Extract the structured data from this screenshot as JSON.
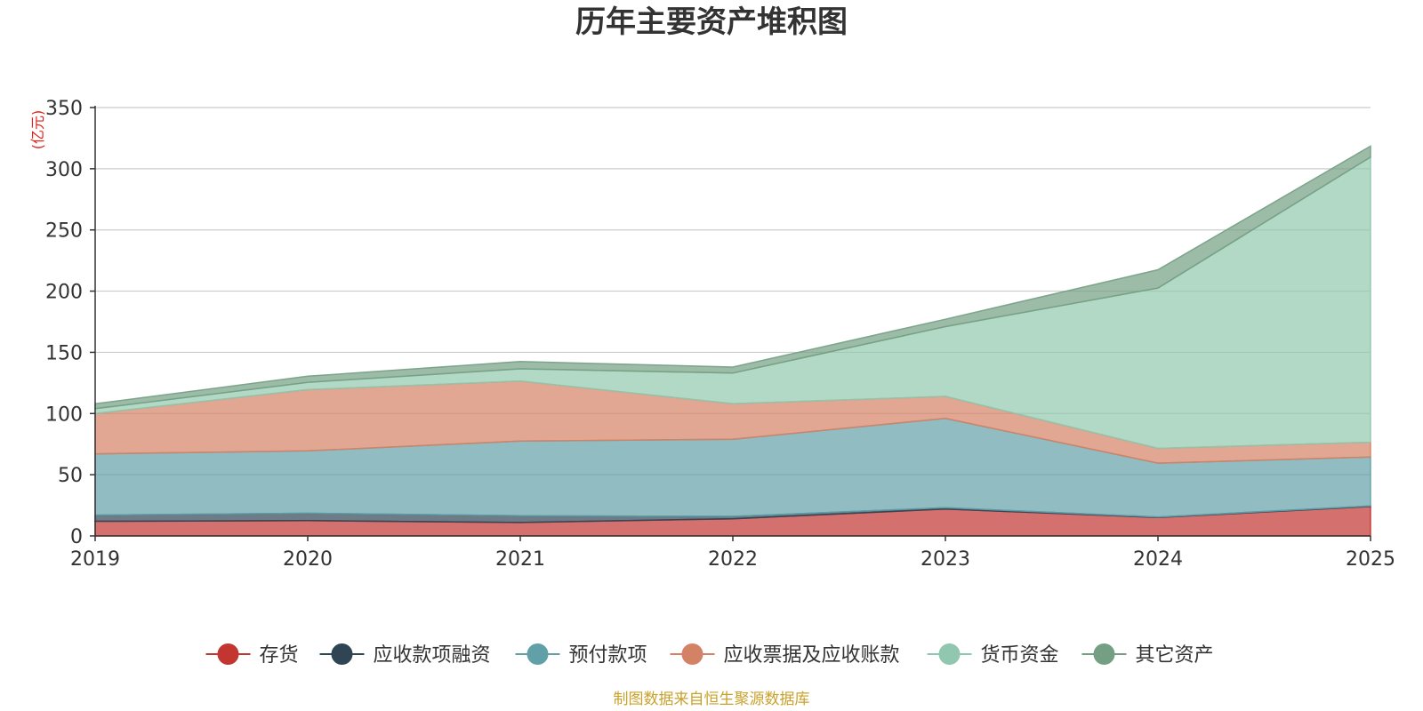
{
  "chart_data": {
    "type": "area",
    "title": "历年主要资产堆积图",
    "ylabel": "(亿元)",
    "xlabel": "",
    "ylim": [
      0,
      350
    ],
    "yticks": [
      0,
      50,
      100,
      150,
      200,
      250,
      300,
      350
    ],
    "grid": true,
    "stacked": true,
    "legend_position": "bottom",
    "x": [
      "2019",
      "2020",
      "2021",
      "2022",
      "2023",
      "2024",
      "2025"
    ],
    "series": [
      {
        "name": "存货",
        "color": "#c23531",
        "values": [
          12,
          12.5,
          11,
          14,
          22,
          15,
          24
        ]
      },
      {
        "name": "应收款项融资",
        "color": "#2f4554",
        "values": [
          5,
          6,
          5.5,
          2,
          1,
          0.5,
          0.5
        ]
      },
      {
        "name": "预付款项",
        "color": "#61a0a8",
        "values": [
          50,
          51,
          61,
          63,
          73,
          44,
          40
        ]
      },
      {
        "name": "应收票据及应收账款",
        "color": "#d48265",
        "values": [
          33,
          50,
          49,
          29,
          18,
          12,
          12
        ]
      },
      {
        "name": "货币资金",
        "color": "#91c7ae",
        "values": [
          4,
          6,
          10,
          25,
          57,
          131,
          233
        ]
      },
      {
        "name": "其它资产",
        "color": "#749f83",
        "values": [
          4,
          5,
          6,
          5,
          6,
          15,
          9
        ]
      }
    ],
    "source": "制图数据来自恒生聚源数据库"
  }
}
